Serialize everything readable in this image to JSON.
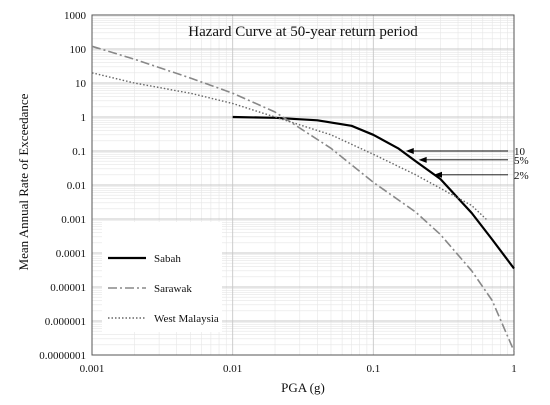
{
  "chart_data": {
    "type": "line",
    "title": "Hazard Curve at 50-year return period",
    "xlabel": "PGA (g)",
    "ylabel": "Mean Annual Rate of Exceedance",
    "x_scale": "log",
    "y_scale": "log",
    "xlim": [
      0.001,
      1
    ],
    "ylim": [
      1e-07,
      1000
    ],
    "x_tick_labels": [
      "0.001",
      "0.01",
      "0.1",
      "1"
    ],
    "y_tick_labels": [
      "0.0000001",
      "0.000001",
      "0.00001",
      "0.0001",
      "0.001",
      "0.01",
      "0.1",
      "1",
      "10",
      "100",
      "1000"
    ],
    "grid": true,
    "legend_position": "bottom-left",
    "series": [
      {
        "name": "Sabah",
        "style": "solid",
        "color": "#000000",
        "x": [
          0.01,
          0.02,
          0.04,
          0.07,
          0.1,
          0.15,
          0.2,
          0.3,
          0.5,
          0.7,
          1.0
        ],
        "y": [
          1.0,
          0.95,
          0.8,
          0.55,
          0.3,
          0.12,
          0.05,
          0.015,
          0.0015,
          0.00025,
          3.5e-05
        ]
      },
      {
        "name": "Sarawak",
        "style": "dash-dot",
        "color": "#888888",
        "x": [
          0.001,
          0.002,
          0.005,
          0.01,
          0.02,
          0.05,
          0.1,
          0.2,
          0.3,
          0.5,
          0.7,
          1.0
        ],
        "y": [
          120,
          50,
          14,
          5,
          1.4,
          0.12,
          0.012,
          0.0016,
          0.00035,
          3e-05,
          4e-06,
          1.3e-07
        ]
      },
      {
        "name": "West Malaysia",
        "style": "dotted",
        "color": "#666666",
        "x": [
          0.001,
          0.002,
          0.005,
          0.01,
          0.02,
          0.05,
          0.1,
          0.2,
          0.3,
          0.5,
          0.65
        ],
        "y": [
          20,
          10,
          5,
          2.5,
          1.0,
          0.3,
          0.08,
          0.02,
          0.008,
          0.0025,
          0.0009
        ]
      }
    ],
    "annotations": [
      {
        "label": "10",
        "x": 0.17,
        "y": 0.1
      },
      {
        "label": "5%",
        "x": 0.21,
        "y": 0.055
      },
      {
        "label": "2%",
        "x": 0.27,
        "y": 0.02
      }
    ]
  }
}
